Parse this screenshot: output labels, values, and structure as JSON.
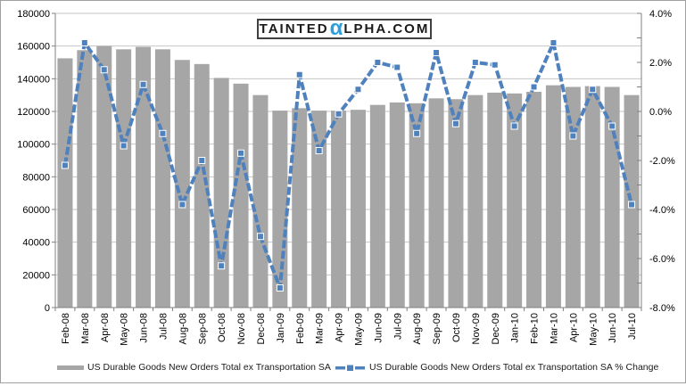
{
  "logo": {
    "part1": "TAINTED",
    "alpha": "α",
    "part2": "LPHA.COM",
    "alpha_color": "#2E9FDA"
  },
  "colors": {
    "bar": "#A6A6A6",
    "line": "#4F81BD",
    "marker_border": "#FFFFFF",
    "grid": "#C6C6C6",
    "axis": "#808080",
    "text": "#000000",
    "figure_border": "#A0A0A0"
  },
  "chart_data": {
    "type": "combo",
    "title": "",
    "categories": [
      "Feb-08",
      "Mar-08",
      "Apr-08",
      "May-08",
      "Jun-08",
      "Jul-08",
      "Aug-08",
      "Sep-08",
      "Oct-08",
      "Nov-08",
      "Dec-08",
      "Jan-09",
      "Feb-09",
      "Mar-09",
      "Apr-09",
      "May-09",
      "Jun-09",
      "Jul-09",
      "Aug-09",
      "Sep-09",
      "Oct-09",
      "Nov-09",
      "Dec-09",
      "Jan-10",
      "Feb-10",
      "Mar-10",
      "Apr-10",
      "May-10",
      "Jun-10",
      "Jul-10"
    ],
    "series": [
      {
        "name": "US Durable Goods New Orders Total ex Transportation SA",
        "type": "bar",
        "axis": "left",
        "color": "#A6A6A6",
        "values": [
          152500,
          157500,
          160000,
          158000,
          159500,
          158000,
          151500,
          149000,
          140500,
          137000,
          130000,
          120500,
          122000,
          120500,
          120500,
          121000,
          124000,
          125500,
          125000,
          128000,
          127500,
          130000,
          131500,
          131000,
          132000,
          136000,
          135000,
          135500,
          135000,
          130000
        ]
      },
      {
        "name": "US Durable Goods New Orders Total ex Transportation SA % Change",
        "type": "line",
        "axis": "right",
        "color": "#4F81BD",
        "values": [
          -2.2,
          2.8,
          1.7,
          -1.4,
          1.1,
          -0.9,
          -3.8,
          -2.0,
          -6.3,
          -1.7,
          -5.1,
          -7.2,
          1.5,
          -1.6,
          -0.1,
          0.9,
          2.0,
          1.8,
          -0.9,
          2.4,
          -0.5,
          2.0,
          1.9,
          -0.6,
          1.0,
          2.8,
          -1.0,
          0.9,
          -0.6,
          -3.8
        ]
      }
    ],
    "y_left": {
      "min": 0,
      "max": 180000,
      "tick_step": 20000,
      "tick_labels": [
        "180000",
        "160000",
        "140000",
        "120000",
        "100000",
        "80000",
        "60000",
        "40000",
        "20000",
        "0"
      ]
    },
    "y_right": {
      "min": -8,
      "max": 4,
      "tick_step": 2,
      "tick_labels": [
        "4.0%",
        "2.0%",
        "0.0%",
        "-2.0%",
        "-4.0%",
        "-6.0%",
        "-8.0%"
      ]
    },
    "grid": "horizontal",
    "legend_position": "bottom",
    "xlabel": "",
    "ylabel": ""
  }
}
